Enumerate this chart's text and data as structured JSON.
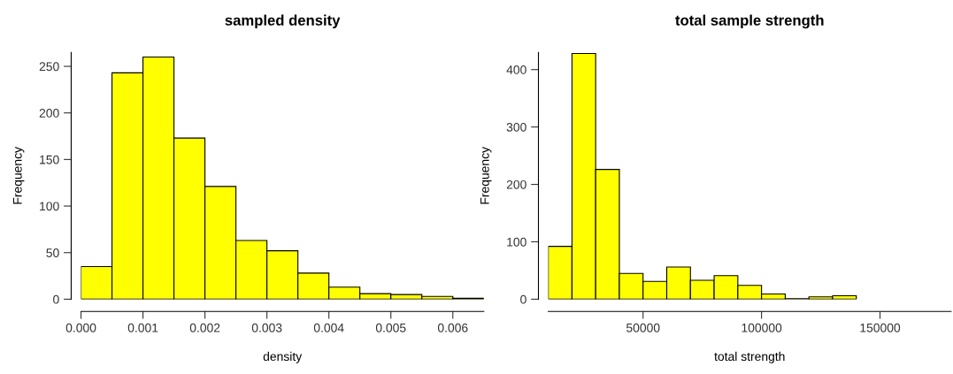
{
  "chart_data": [
    {
      "type": "histogram",
      "title": "sampled density",
      "xlabel": "density",
      "ylabel": "Frequency",
      "color": "#ffff00",
      "bins": [
        0,
        0.0005,
        0.001,
        0.0015,
        0.002,
        0.0025,
        0.003,
        0.0035,
        0.004,
        0.0045,
        0.005,
        0.0055,
        0.006,
        0.0065
      ],
      "values": [
        35,
        243,
        260,
        173,
        121,
        63,
        52,
        28,
        13,
        6,
        5,
        3,
        1
      ],
      "xlim": [
        0,
        0.0065
      ],
      "ylim": [
        0,
        265
      ],
      "xticks": [
        {
          "value": 0,
          "label": "0.000"
        },
        {
          "value": 0.001,
          "label": "0.001"
        },
        {
          "value": 0.002,
          "label": "0.002"
        },
        {
          "value": 0.003,
          "label": "0.003"
        },
        {
          "value": 0.004,
          "label": "0.004"
        },
        {
          "value": 0.005,
          "label": "0.005"
        },
        {
          "value": 0.006,
          "label": "0.006"
        }
      ],
      "yticks": [
        0,
        50,
        100,
        150,
        200,
        250
      ],
      "grid": false
    },
    {
      "type": "histogram",
      "title": "total sample strength",
      "xlabel": "total strength",
      "ylabel": "Frequency",
      "color": "#ffff00",
      "bins": [
        10000,
        20000,
        30000,
        40000,
        50000,
        60000,
        70000,
        80000,
        90000,
        100000,
        110000,
        120000,
        130000,
        140000,
        150000,
        160000,
        170000,
        180000
      ],
      "values": [
        92,
        428,
        226,
        45,
        31,
        56,
        33,
        41,
        24,
        9,
        1,
        4,
        6,
        0,
        0,
        0,
        0
      ],
      "xlim": [
        10000,
        180000
      ],
      "ylim": [
        0,
        430
      ],
      "xticks": [
        50000,
        100000,
        150000
      ],
      "yticks": [
        0,
        100,
        200,
        300,
        400
      ],
      "grid": false
    }
  ]
}
